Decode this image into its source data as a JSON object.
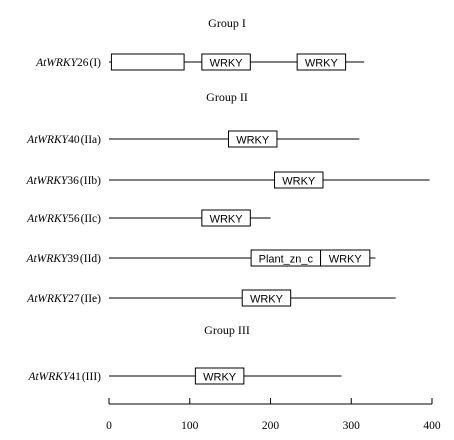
{
  "groups": [
    {
      "title": "Group I"
    },
    {
      "title": "Group II"
    },
    {
      "title": "Group III"
    }
  ],
  "proteins": [
    {
      "gene": "AtWRKY",
      "num": "26",
      "cls": "(I)",
      "length": 316,
      "domains": [
        {
          "label": "",
          "start": 3,
          "end": 93
        },
        {
          "label": "WRKY",
          "start": 115,
          "end": 175
        },
        {
          "label": "WRKY",
          "start": 233,
          "end": 293
        }
      ]
    },
    {
      "gene": "AtWRKY",
      "num": "40",
      "cls": "(IIa)",
      "length": 310,
      "domains": [
        {
          "label": "WRKY",
          "start": 148,
          "end": 208
        }
      ]
    },
    {
      "gene": "AtWRKY",
      "num": "36",
      "cls": "(IIb)",
      "length": 397,
      "domains": [
        {
          "label": "WRKY",
          "start": 205,
          "end": 265
        }
      ]
    },
    {
      "gene": "AtWRKY",
      "num": "56",
      "cls": "(IIc)",
      "length": 200,
      "domains": [
        {
          "label": "WRKY",
          "start": 115,
          "end": 175
        }
      ]
    },
    {
      "gene": "AtWRKY",
      "num": "39",
      "cls": "(IId)",
      "length": 330,
      "domains": [
        {
          "label": "Plant_zn_c",
          "start": 176,
          "end": 262
        },
        {
          "label": "WRKY",
          "start": 262,
          "end": 323
        }
      ]
    },
    {
      "gene": "AtWRKY",
      "num": "27",
      "cls": "(IIe)",
      "length": 355,
      "domains": [
        {
          "label": "WRKY",
          "start": 165,
          "end": 225
        }
      ]
    },
    {
      "gene": "AtWRKY",
      "num": "41",
      "cls": "(III)",
      "length": 288,
      "domains": [
        {
          "label": "WRKY",
          "start": 107,
          "end": 167
        }
      ]
    }
  ],
  "axis": {
    "min": 0,
    "max": 400,
    "ticks": [
      0,
      100,
      200,
      300,
      400
    ]
  }
}
